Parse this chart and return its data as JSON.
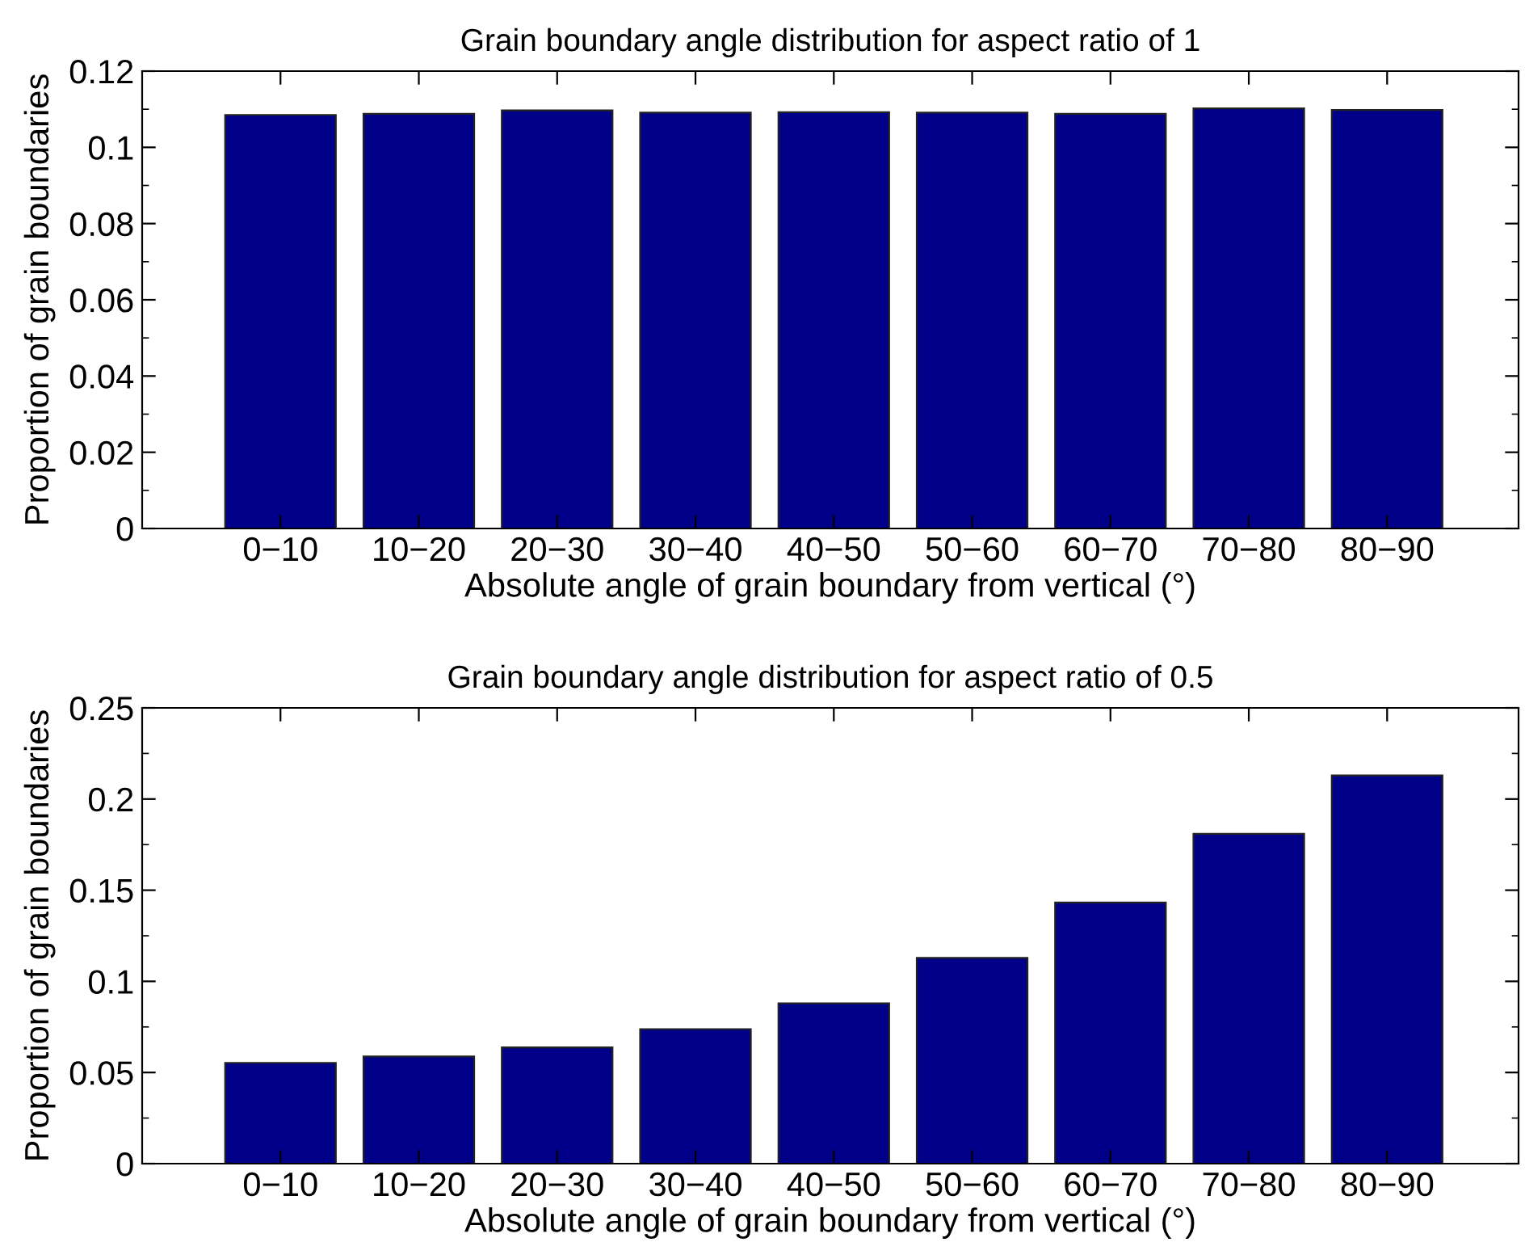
{
  "chart_data": [
    {
      "type": "bar",
      "title": "Grain boundary angle distribution for aspect ratio of 1",
      "xlabel": "Absolute angle of grain boundary from vertical (°)",
      "ylabel": "Proportion of grain boundaries",
      "categories": [
        "0−10",
        "10−20",
        "20−30",
        "30−40",
        "40−50",
        "50−60",
        "60−70",
        "70−80",
        "80−90"
      ],
      "values": [
        0.1085,
        0.1088,
        0.1097,
        0.1091,
        0.1092,
        0.1091,
        0.1088,
        0.1102,
        0.1098
      ],
      "color": "#000088",
      "ylim": [
        0,
        0.12
      ],
      "yticks": [
        0,
        0.02,
        0.04,
        0.06,
        0.08,
        0.1,
        0.12
      ],
      "grid": false,
      "legend": false
    },
    {
      "type": "bar",
      "title": "Grain boundary angle distribution for aspect ratio of 0.5",
      "xlabel": "Absolute angle of grain boundary from vertical (°)",
      "ylabel": "Proportion of grain boundaries",
      "categories": [
        "0−10",
        "10−20",
        "20−30",
        "30−40",
        "40−50",
        "50−60",
        "60−70",
        "70−80",
        "80−90"
      ],
      "values": [
        0.0553,
        0.0588,
        0.0638,
        0.0738,
        0.0879,
        0.1129,
        0.1432,
        0.1809,
        0.2129
      ],
      "color": "#000088",
      "ylim": [
        0,
        0.25
      ],
      "yticks": [
        0,
        0.05,
        0.1,
        0.15,
        0.2,
        0.25
      ],
      "grid": false,
      "legend": false
    }
  ]
}
